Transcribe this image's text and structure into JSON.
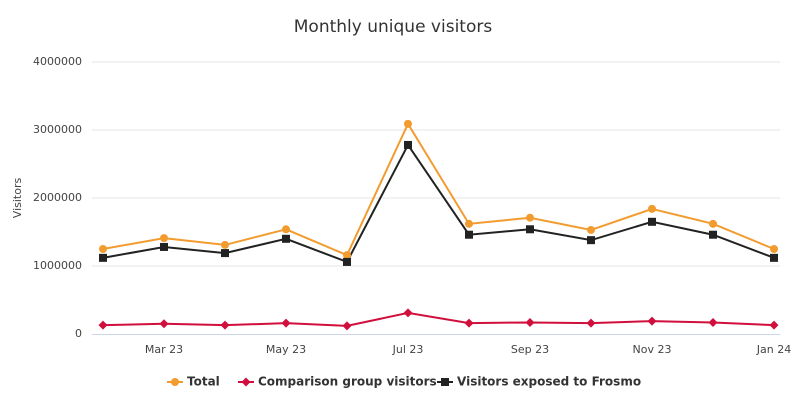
{
  "chart_data": {
    "type": "line",
    "title": "Monthly unique visitors",
    "y_label": "Visitors",
    "categories": [
      null,
      "Mar 23",
      null,
      "May 23",
      null,
      "Jul 23",
      null,
      "Sep 23",
      null,
      "Nov 23",
      null,
      "Jan 24"
    ],
    "series": [
      {
        "name": "Total",
        "color": "#f29b2f",
        "marker": "circle",
        "values": [
          1250000,
          1410000,
          1310000,
          1540000,
          1160000,
          3090000,
          1620000,
          1710000,
          1530000,
          1840000,
          1620000,
          1250000
        ]
      },
      {
        "name": "Comparison group visitors",
        "color": "#d10f3c",
        "marker": "diamond",
        "values": [
          130000,
          150000,
          130000,
          160000,
          120000,
          310000,
          160000,
          170000,
          160000,
          190000,
          170000,
          130000
        ]
      },
      {
        "name": "Visitors exposed to Frosmo",
        "color": "#222222",
        "marker": "square",
        "values": [
          1120000,
          1280000,
          1190000,
          1400000,
          1060000,
          2780000,
          1460000,
          1540000,
          1380000,
          1650000,
          1460000,
          1120000
        ]
      }
    ],
    "ylim": [
      0,
      4000000
    ],
    "yticks": [
      0,
      1000000,
      2000000,
      3000000,
      4000000
    ],
    "grid": true
  }
}
